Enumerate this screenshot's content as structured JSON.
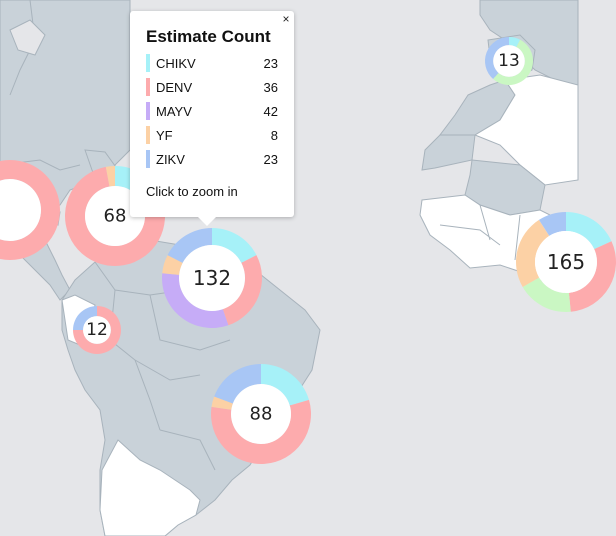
{
  "map": {
    "colors": {
      "ocean": "#e5e6e9",
      "gray_land": "#c9d2d9",
      "white_land": "#ffffff",
      "border": "#a8b3bc"
    }
  },
  "legend_colors": {
    "CHIKV": "#a6f1f8",
    "DENV": "#fdabad",
    "MAYV": "#c6acf7",
    "YF": "#fcd1a5",
    "ZIKV": "#a8c6f5",
    "OTHER": "#caf7c3"
  },
  "clusters": [
    {
      "id": "cluster-68",
      "label": "68",
      "segments": [
        [
          "CHIKV",
          8
        ],
        [
          "DENV",
          58
        ],
        [
          "YF",
          2
        ]
      ]
    },
    {
      "id": "cluster-132",
      "label": "132",
      "segments": [
        [
          "CHIKV",
          23
        ],
        [
          "DENV",
          36
        ],
        [
          "MAYV",
          42
        ],
        [
          "YF",
          8
        ],
        [
          "ZIKV",
          23
        ]
      ]
    },
    {
      "id": "cluster-12",
      "label": "12",
      "segments": [
        [
          "DENV",
          9
        ],
        [
          "ZIKV",
          3
        ]
      ]
    },
    {
      "id": "cluster-88",
      "label": "88",
      "segments": [
        [
          "CHIKV",
          18
        ],
        [
          "DENV",
          50
        ],
        [
          "YF",
          3
        ],
        [
          "ZIKV",
          17
        ]
      ]
    },
    {
      "id": "cluster-13",
      "label": "13",
      "segments": [
        [
          "CHIKV",
          1
        ],
        [
          "OTHER",
          7
        ],
        [
          "ZIKV",
          5
        ]
      ]
    },
    {
      "id": "cluster-165",
      "label": "165",
      "segments": [
        [
          "CHIKV",
          30
        ],
        [
          "DENV",
          50
        ],
        [
          "OTHER",
          30
        ],
        [
          "YF",
          40
        ],
        [
          "ZIKV",
          15
        ]
      ]
    },
    {
      "id": "cluster-edge",
      "label": "",
      "segments": [
        [
          "DENV",
          1
        ]
      ]
    }
  ],
  "popup": {
    "title": "Estimate Count",
    "close_label": "×",
    "rows": [
      {
        "name": "CHIKV",
        "count": "23",
        "color": "#a6f1f8"
      },
      {
        "name": "DENV",
        "count": "36",
        "color": "#fdabad"
      },
      {
        "name": "MAYV",
        "count": "42",
        "color": "#c6acf7"
      },
      {
        "name": "YF",
        "count": "8",
        "color": "#fcd1a5"
      },
      {
        "name": "ZIKV",
        "count": "23",
        "color": "#a8c6f5"
      }
    ],
    "footer": "Click to zoom in"
  }
}
